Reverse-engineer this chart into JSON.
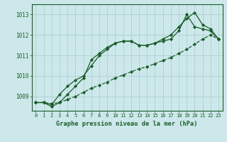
{
  "title": "Graphe pression niveau de la mer (hPa)",
  "bg_color": "#cce8ea",
  "grid_color": "#b0d0d4",
  "line_color": "#1a5c28",
  "marker_color": "#1a5c28",
  "xlim": [
    -0.5,
    23.5
  ],
  "ylim": [
    1008.3,
    1013.5
  ],
  "yticks": [
    1009,
    1010,
    1011,
    1012,
    1013
  ],
  "xticks": [
    0,
    1,
    2,
    3,
    4,
    5,
    6,
    7,
    8,
    9,
    10,
    11,
    12,
    13,
    14,
    15,
    16,
    17,
    18,
    19,
    20,
    21,
    22,
    23
  ],
  "series1": [
    1008.7,
    1008.7,
    1008.5,
    1008.7,
    1009.1,
    1009.5,
    1009.9,
    1010.8,
    1011.1,
    1011.4,
    1011.6,
    1011.7,
    1011.7,
    1011.5,
    1011.5,
    1011.6,
    1011.7,
    1011.8,
    1012.2,
    1013.0,
    1012.4,
    1012.3,
    1012.2,
    1011.8
  ],
  "series2": [
    1008.7,
    1008.7,
    1008.6,
    1009.1,
    1009.5,
    1009.8,
    1010.0,
    1010.5,
    1011.0,
    1011.3,
    1011.6,
    1011.7,
    1011.7,
    1011.5,
    1011.5,
    1011.6,
    1011.8,
    1012.0,
    1012.4,
    1012.8,
    1013.1,
    1012.5,
    1012.3,
    1011.8
  ],
  "series3": [
    1008.7,
    1008.7,
    1008.65,
    1008.7,
    1008.85,
    1009.0,
    1009.2,
    1009.4,
    1009.55,
    1009.7,
    1009.9,
    1010.05,
    1010.2,
    1010.35,
    1010.45,
    1010.6,
    1010.75,
    1010.9,
    1011.1,
    1011.3,
    1011.55,
    1011.8,
    1012.0,
    1011.8
  ]
}
